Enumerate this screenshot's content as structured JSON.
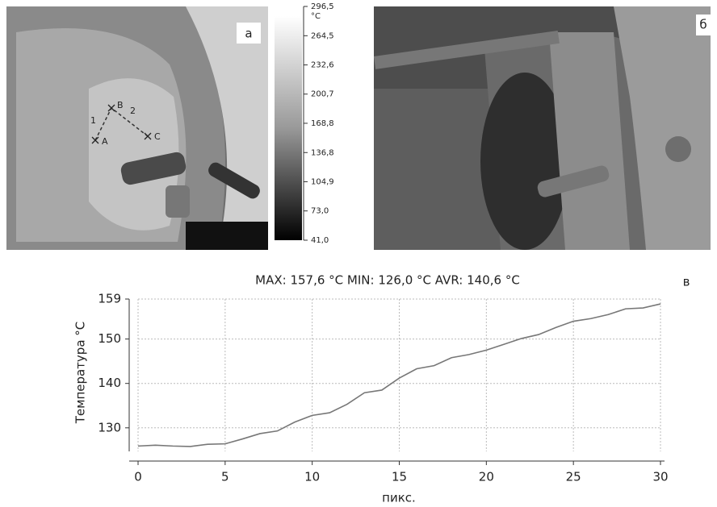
{
  "panels": {
    "a": "а",
    "b": "б",
    "c": "в"
  },
  "thermal_marks": {
    "points": [
      "A",
      "B",
      "C"
    ],
    "segments": [
      "1",
      "2"
    ]
  },
  "colorbar": {
    "unit": "°C",
    "lim": [
      41.0,
      296.5
    ],
    "ticks": [
      {
        "value": 296.5,
        "label": "296,5"
      },
      {
        "value": 264.5,
        "label": "264,5"
      },
      {
        "value": 232.6,
        "label": "232,6"
      },
      {
        "value": 200.7,
        "label": "200,7"
      },
      {
        "value": 168.8,
        "label": "168,8"
      },
      {
        "value": 136.8,
        "label": "136,8"
      },
      {
        "value": 104.9,
        "label": "104,9"
      },
      {
        "value": 73.0,
        "label": "73,0"
      },
      {
        "value": 41.0,
        "label": "41,0"
      }
    ]
  },
  "chart_data": {
    "type": "line",
    "title": "MAX: 157,6 °C MIN: 126,0 °C AVR: 140,6 °C",
    "ylabel": "Температура °C",
    "xlabel": "пикс.",
    "x": [
      0,
      1,
      2,
      3,
      4,
      5,
      6,
      7,
      8,
      9,
      10,
      11,
      12,
      13,
      14,
      15,
      16,
      17,
      18,
      19,
      20,
      21,
      22,
      23,
      24,
      25,
      26,
      27,
      28,
      29,
      30
    ],
    "series": [
      {
        "name": null,
        "color": "#777777",
        "values": [
          125.9,
          126.1,
          125.9,
          125.8,
          126.3,
          126.4,
          127.5,
          128.7,
          129.3,
          131.3,
          132.8,
          133.4,
          135.3,
          137.9,
          138.5,
          141.2,
          143.3,
          144.0,
          145.8,
          146.5,
          147.5,
          148.8,
          150.1,
          151.0,
          152.6,
          154.0,
          154.6,
          155.5,
          156.8,
          157.0,
          157.9
        ]
      }
    ],
    "xlim": [
      0,
      30
    ],
    "xticks": [
      0,
      5,
      10,
      15,
      20,
      25,
      30
    ],
    "ylim": [
      124.7,
      159
    ],
    "yticks": [
      130,
      140,
      150,
      159
    ],
    "grid": true
  }
}
